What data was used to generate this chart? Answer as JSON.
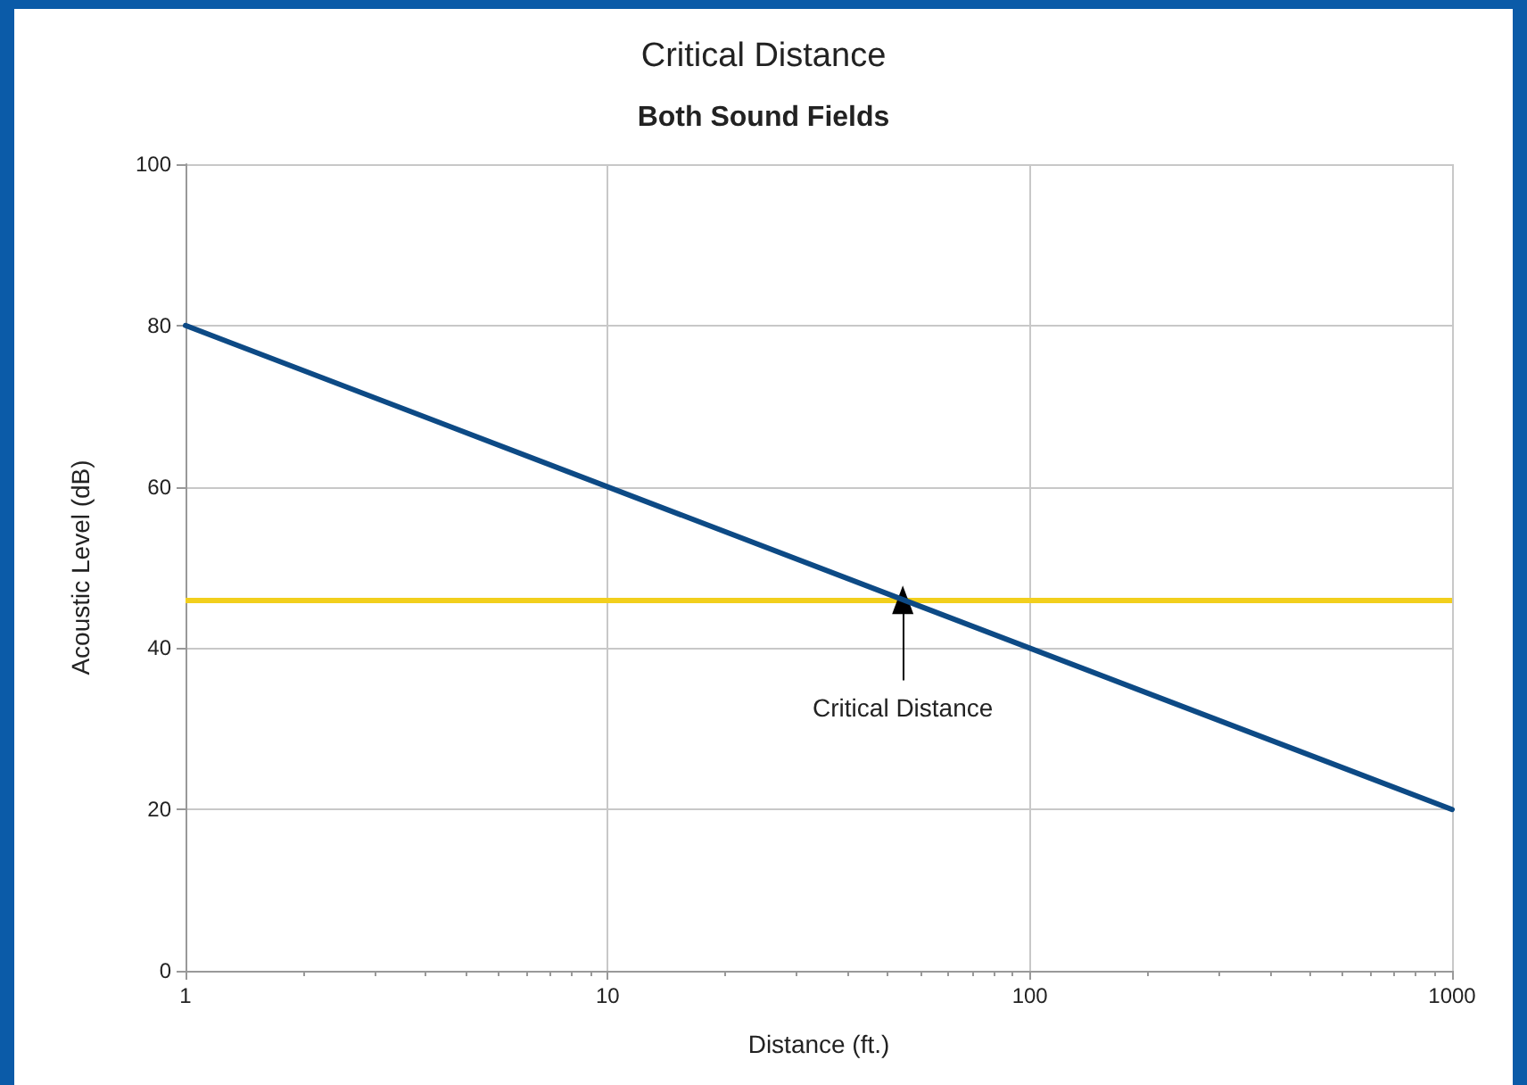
{
  "chart_data": {
    "type": "line",
    "title": "Critical Distance",
    "subtitle": "Both Sound Fields",
    "xlabel": "Distance (ft.)",
    "ylabel": "Acoustic Level (dB)",
    "x": [
      1,
      1000
    ],
    "series": [
      {
        "color": "#0d4a85",
        "values": [
          80,
          20
        ]
      }
    ],
    "log": "x",
    "xlim": [
      1,
      1000
    ],
    "xticks": [
      1,
      10,
      100,
      1000
    ],
    "ylim": [
      0,
      100
    ],
    "yticks": [
      0,
      20,
      40,
      60,
      80,
      100
    ],
    "grid": true,
    "marker": "none",
    "line_style": "solid",
    "ref_lines": [
      {
        "axis": "y",
        "value": 46,
        "color": "#f2cf1d"
      }
    ],
    "annotations": [
      {
        "text": "Critical Distance",
        "x": 50,
        "y": 46
      }
    ]
  }
}
